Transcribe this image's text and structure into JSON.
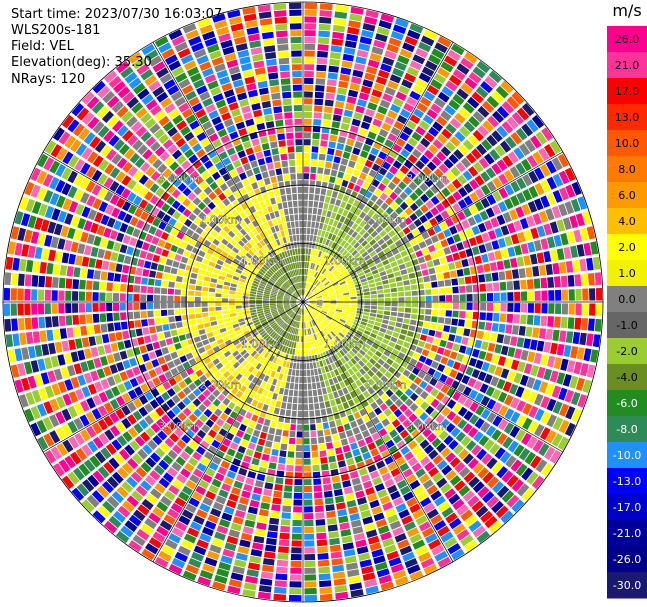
{
  "header": {
    "start_time": "Start time: 2023/07/30 16:03:07",
    "instrument": "WLS200s-181",
    "field": "Field: VEL",
    "elevation": "Elevation(deg): 35.30",
    "nrays": "NRays: 120"
  },
  "colorbar": {
    "unit": "m/s",
    "ticks": [
      "26.0",
      "21.0",
      "17.0",
      "13.0",
      "10.0",
      "8.0",
      "6.0",
      "4.0",
      "2.0",
      "1.0",
      "0.0",
      "-1.0",
      "-2.0",
      "-4.0",
      "-6.0",
      "-8.0",
      "-10.0",
      "-13.0",
      "-17.0",
      "-21.0",
      "-26.0",
      "-30.0"
    ],
    "colors": [
      "#ff0090",
      "#ff3399",
      "#ff0000",
      "#ff2a00",
      "#ff5a00",
      "#ff7a00",
      "#ff9900",
      "#ffbf00",
      "#ffff00",
      "#f2f200",
      "#808080",
      "#666666",
      "#9acd32",
      "#6b8e23",
      "#228b22",
      "#2e8b57",
      "#1e90ff",
      "#0000ff",
      "#0000cd",
      "#000099",
      "#00008b",
      "#191970"
    ]
  },
  "chart_data": {
    "type": "heatmap",
    "projection": "polar-ppi",
    "field": "VEL",
    "units": "m/s",
    "nrays": 120,
    "range_rings_km": [
      1.0,
      2.0,
      3.0
    ],
    "ring_labels": [
      "1.00km",
      "2.00km",
      "3.00km"
    ],
    "clim": [
      -30.0,
      26.0
    ],
    "azimuth_lines_deg": [
      0,
      30,
      60,
      90,
      120,
      150,
      180,
      210,
      240,
      270,
      300,
      330
    ]
  }
}
